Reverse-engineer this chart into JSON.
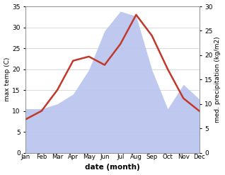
{
  "months": [
    "Jan",
    "Feb",
    "Mar",
    "Apr",
    "May",
    "Jun",
    "Jul",
    "Aug",
    "Sep",
    "Oct",
    "Nov",
    "Dec"
  ],
  "temperature": [
    8,
    10,
    15,
    22,
    23,
    21,
    26,
    33,
    28,
    20,
    13,
    10
  ],
  "precipitation": [
    9,
    9,
    10,
    12,
    17,
    25,
    29,
    28,
    17,
    9,
    14,
    11
  ],
  "temp_color": "#c0392b",
  "precip_color": "#b8c4ee",
  "ylabel_left": "max temp (C)",
  "ylabel_right": "med. precipitation (kg/m2)",
  "xlabel": "date (month)",
  "ylim_left": [
    0,
    35
  ],
  "ylim_right": [
    0,
    30
  ],
  "yticks_left": [
    0,
    5,
    10,
    15,
    20,
    25,
    30,
    35
  ],
  "yticks_right": [
    0,
    5,
    10,
    15,
    20,
    25,
    30
  ]
}
